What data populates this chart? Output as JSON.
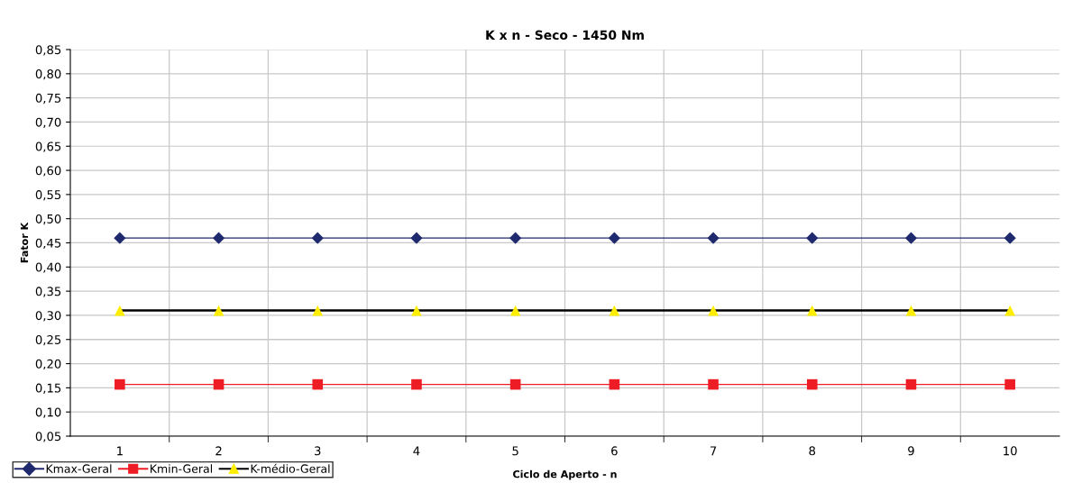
{
  "chart_data": {
    "type": "line",
    "title": "K x n - Seco - 1450 Nm",
    "xlabel": "Ciclo de Aperto - n",
    "ylabel": "Fator K",
    "categories": [
      "1",
      "2",
      "3",
      "4",
      "5",
      "6",
      "7",
      "8",
      "9",
      "10"
    ],
    "series": [
      {
        "name": "Kmax-Geral",
        "color": "#1f2a6e",
        "marker": "diamond",
        "values": [
          0.46,
          0.46,
          0.46,
          0.46,
          0.46,
          0.46,
          0.46,
          0.46,
          0.46,
          0.46
        ]
      },
      {
        "name": "Kmin-Geral",
        "color": "#ee1c25",
        "marker": "square",
        "values": [
          0.157,
          0.157,
          0.157,
          0.157,
          0.157,
          0.157,
          0.157,
          0.157,
          0.157,
          0.157
        ]
      },
      {
        "name": "K-médio-Geral",
        "color": "#000000",
        "marker": "triangle",
        "colors": [
          "#ffee00",
          "#ffee00",
          "#ffee00",
          "#ffee00",
          "#ffee00",
          "#ffee00",
          "#ffee00",
          "#ffee00",
          "#ffee00",
          "#ffee00"
        ],
        "values": [
          0.31,
          0.31,
          0.31,
          0.31,
          0.31,
          0.31,
          0.31,
          0.31,
          0.31,
          0.31
        ]
      }
    ],
    "ylim": [
      0.05,
      0.85
    ],
    "yticks": [
      {
        "value": 0.05,
        "label": "0,05"
      },
      {
        "value": 0.1,
        "label": "0,10"
      },
      {
        "value": 0.15,
        "label": "0,15"
      },
      {
        "value": 0.2,
        "label": "0,20"
      },
      {
        "value": 0.25,
        "label": "0,25"
      },
      {
        "value": 0.3,
        "label": "0,30"
      },
      {
        "value": 0.35,
        "label": "0,35"
      },
      {
        "value": 0.4,
        "label": "0,40"
      },
      {
        "value": 0.45,
        "label": "0,45"
      },
      {
        "value": 0.5,
        "label": "0,50"
      },
      {
        "value": 0.55,
        "label": "0,55"
      },
      {
        "value": 0.6,
        "label": "0,60"
      },
      {
        "value": 0.65,
        "label": "0,65"
      },
      {
        "value": 0.7,
        "label": "0,70"
      },
      {
        "value": 0.75,
        "label": "0,75"
      },
      {
        "value": 0.8,
        "label": "0,80"
      },
      {
        "value": 0.85,
        "label": "0,85"
      }
    ],
    "grid": true,
    "legend": "bottom left",
    "line_style": "solid"
  }
}
